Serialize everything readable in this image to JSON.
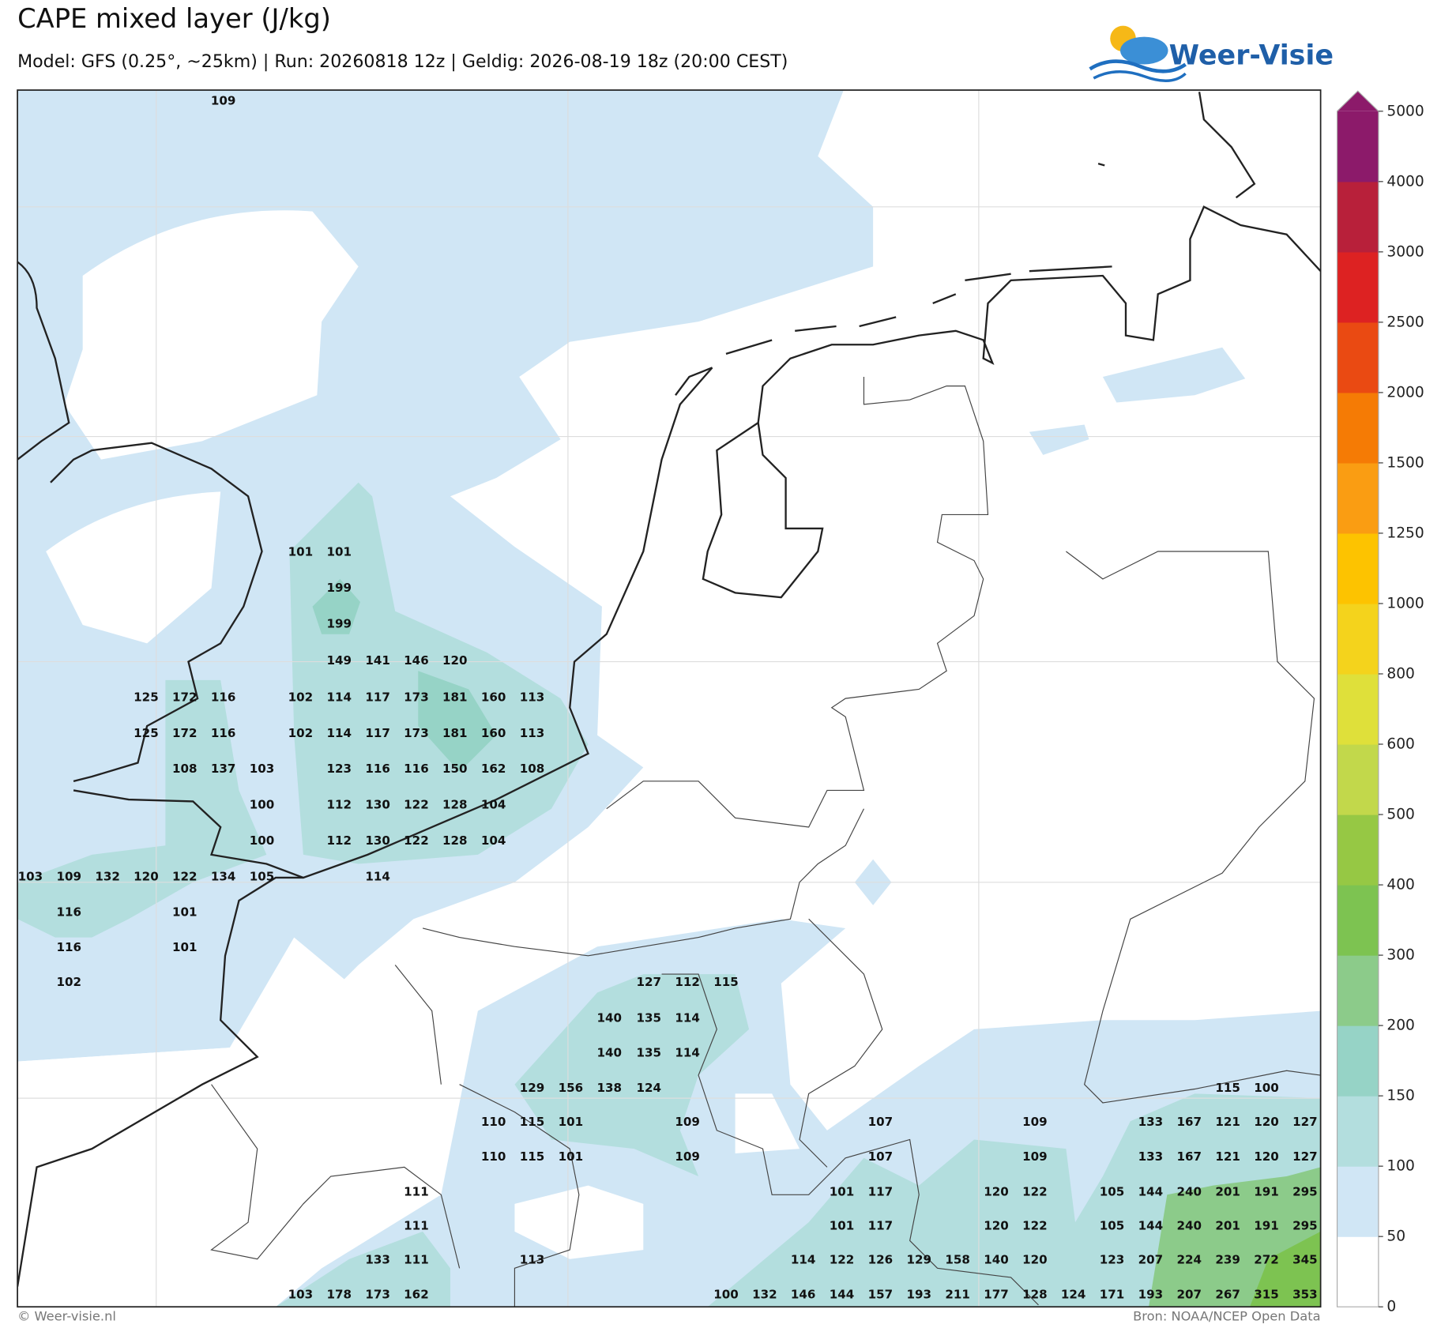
{
  "header": {
    "title": "CAPE mixed layer (J/kg)",
    "subtitle": "Model: GFS (0.25°, ~25km)  |  Run: 20260818 12z  |  Geldig: 2026-08-19 18z (20:00 CEST)",
    "logo": "Weer-Visie"
  },
  "footer": {
    "left": "© Weer-visie.nl",
    "right": "Bron: NOAA/NCEP Open Data"
  },
  "colorbar": {
    "ticks": [
      0,
      50,
      100,
      150,
      200,
      300,
      400,
      500,
      600,
      800,
      1000,
      1250,
      1500,
      2000,
      2500,
      3000,
      4000,
      5000
    ],
    "colors": [
      "#ffffff",
      "#d0e6f5",
      "#b3dede",
      "#96d3c6",
      "#8ccb8a",
      "#7dc351",
      "#96c844",
      "#c2d84b",
      "#dfe03a",
      "#f4d31c",
      "#fdc300",
      "#fa9d12",
      "#f57b05",
      "#ea4a12",
      "#dd2222",
      "#b8203a",
      "#8c1a6a"
    ]
  },
  "map_labels": [
    109,
    101,
    101,
    199,
    199,
    149,
    141,
    146,
    120,
    125,
    172,
    116,
    102,
    114,
    117,
    173,
    181,
    160,
    113,
    125,
    172,
    116,
    102,
    114,
    117,
    173,
    181,
    160,
    113,
    108,
    137,
    103,
    123,
    116,
    116,
    150,
    162,
    108,
    100,
    112,
    130,
    122,
    128,
    104,
    100,
    112,
    130,
    122,
    128,
    104,
    103,
    109,
    132,
    120,
    122,
    134,
    105,
    114,
    116,
    101,
    116,
    101,
    102,
    127,
    112,
    115,
    140,
    135,
    114,
    140,
    135,
    114,
    129,
    156,
    138,
    124,
    115,
    100,
    110,
    115,
    101,
    109,
    107,
    109,
    133,
    167,
    121,
    120,
    127,
    110,
    115,
    101,
    109,
    107,
    109,
    133,
    167,
    121,
    120,
    127,
    111,
    101,
    117,
    120,
    122,
    105,
    144,
    240,
    201,
    191,
    295,
    111,
    101,
    117,
    120,
    122,
    105,
    144,
    240,
    201,
    191,
    295,
    133,
    111,
    113,
    114,
    122,
    126,
    129,
    158,
    140,
    120,
    123,
    207,
    224,
    239,
    272,
    345,
    103,
    178,
    173,
    162,
    100,
    132,
    146,
    144,
    157,
    193,
    211,
    177,
    128,
    124,
    171,
    193,
    207,
    267,
    315,
    353
  ]
}
